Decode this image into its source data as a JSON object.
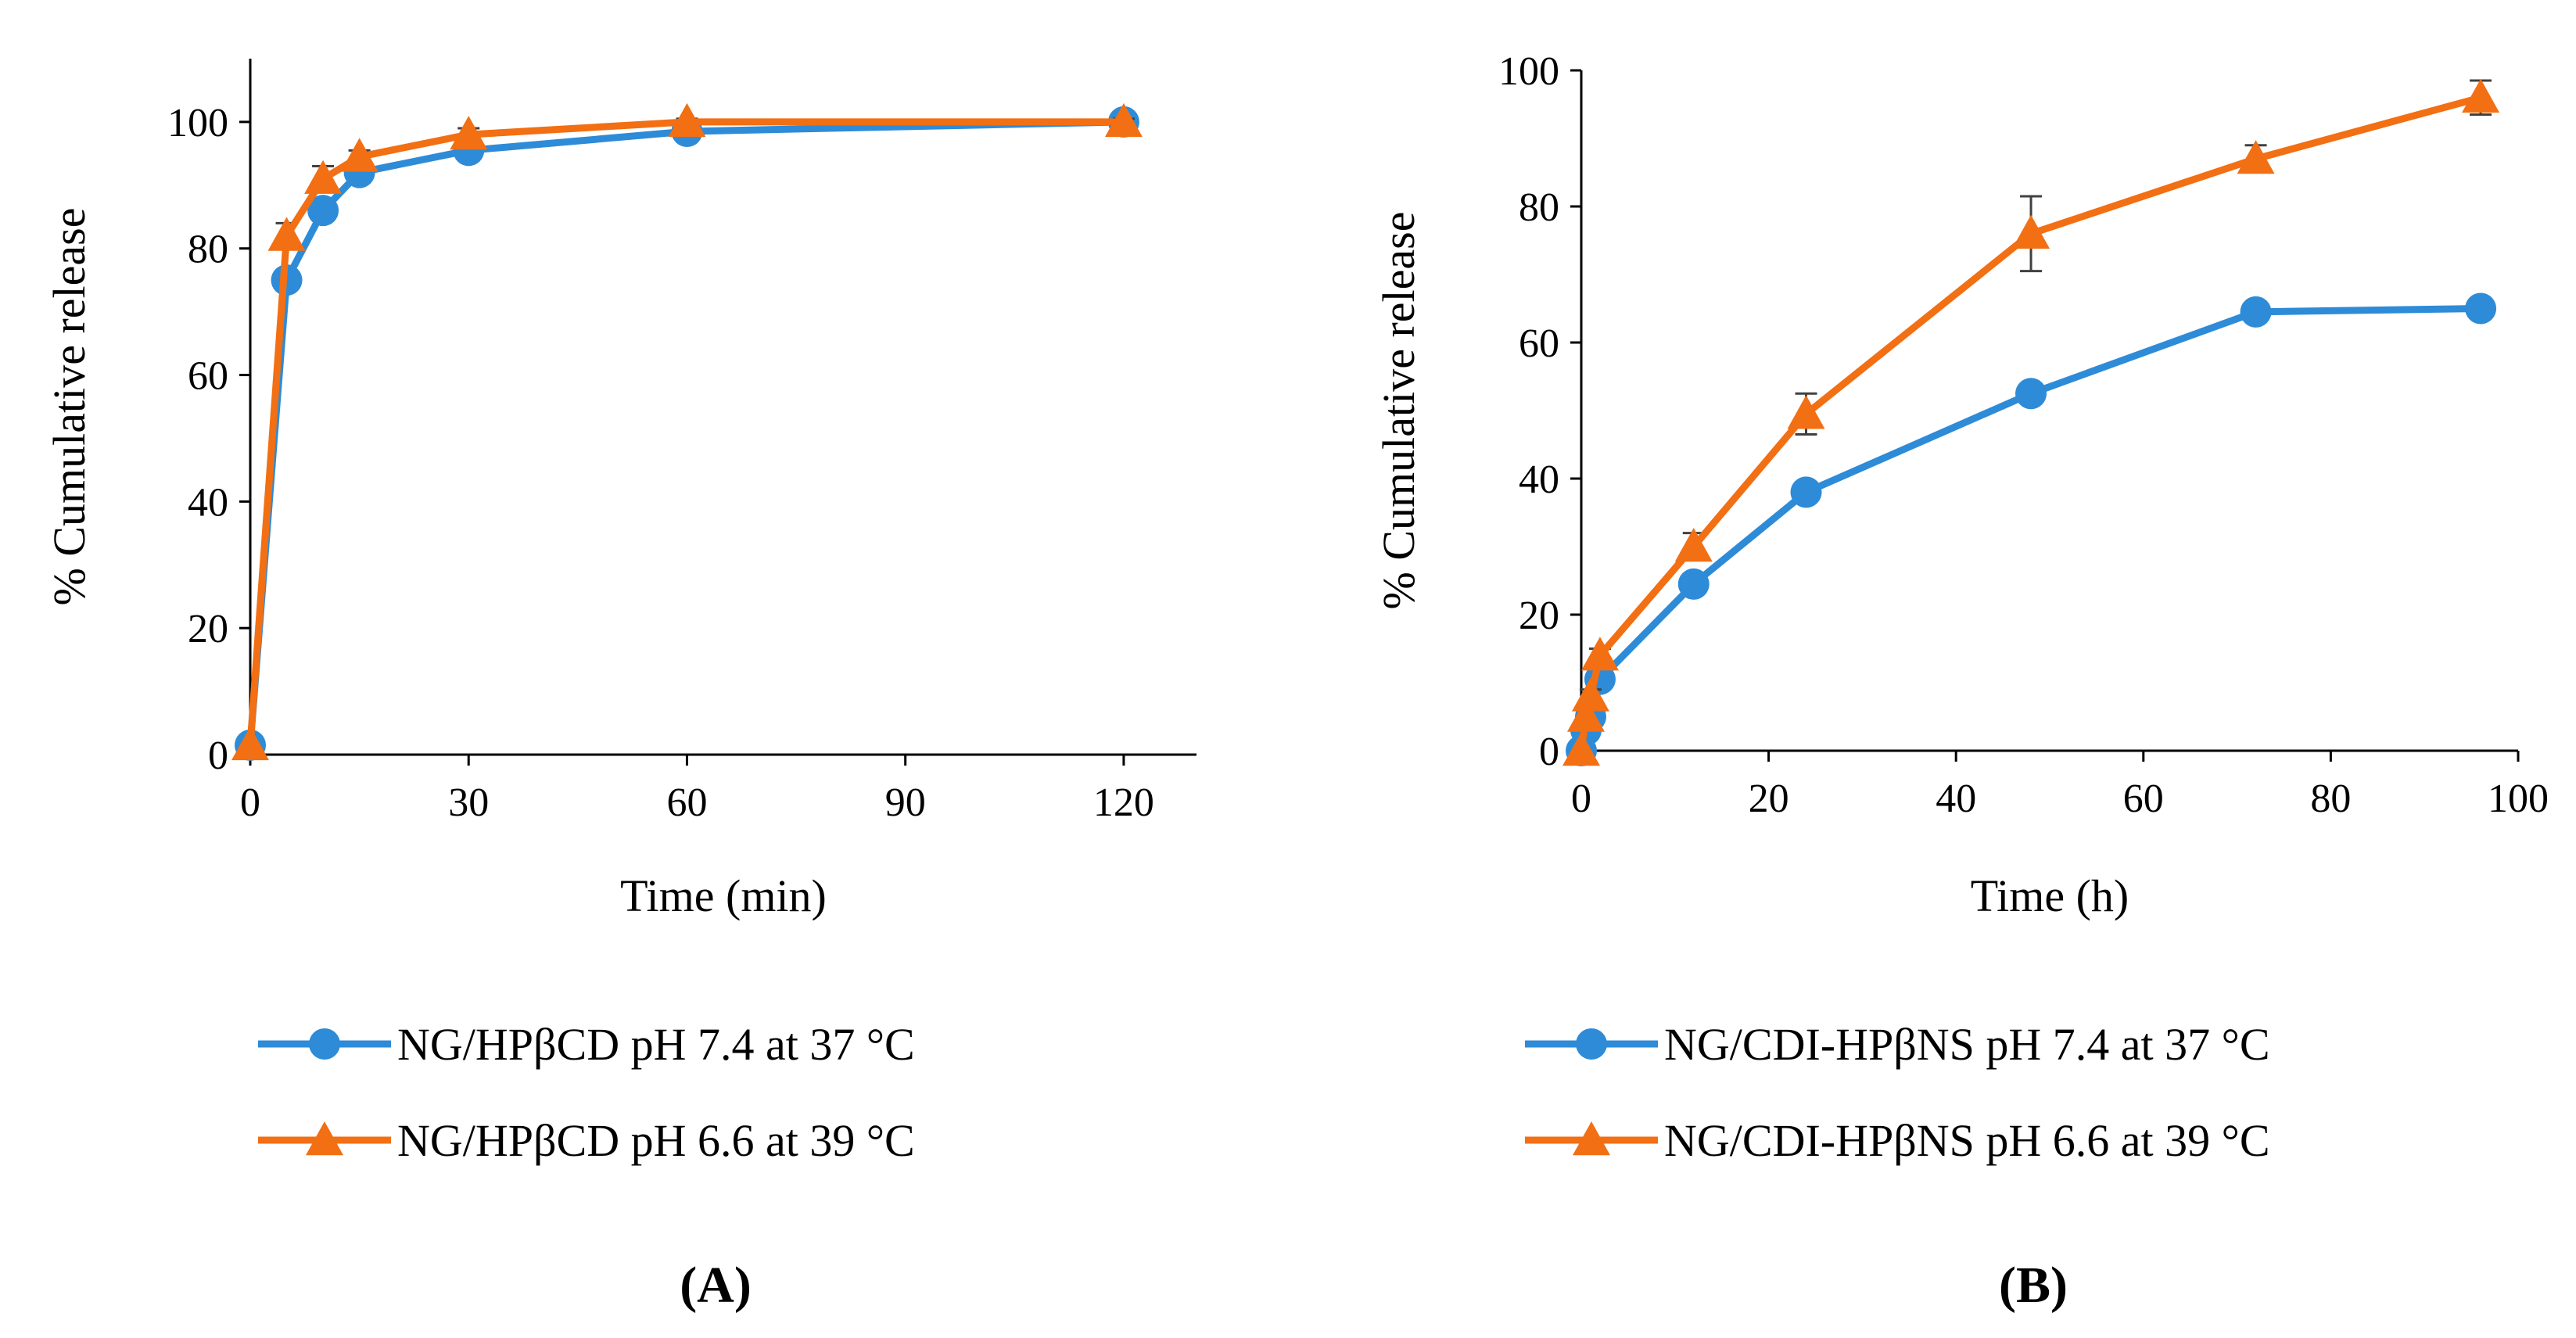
{
  "colors": {
    "blue": "#2e8bd7",
    "orange": "#f26f13"
  },
  "chart_data": [
    {
      "type": "line",
      "panel_label": "(A)",
      "xlabel": "Time (min)",
      "ylabel": "% Cumulative release",
      "xlim": [
        0,
        130
      ],
      "ylim": [
        0,
        110
      ],
      "xticks": [
        0,
        30,
        60,
        90,
        120
      ],
      "yticks": [
        0,
        20,
        40,
        60,
        80,
        100
      ],
      "grid": false,
      "legend_position": "bottom",
      "series": [
        {
          "name": "NG/HPβCD pH 7.4 at 37 °C",
          "color": "#2e8bd7",
          "marker": "circle",
          "x": [
            0,
            5,
            10,
            15,
            30,
            60,
            120
          ],
          "y": [
            1.5,
            75,
            86,
            92,
            95.5,
            98.5,
            100
          ],
          "err": [
            0,
            1.5,
            1.5,
            1,
            1,
            0.8,
            0.5
          ]
        },
        {
          "name": "NG/HPβCD pH 6.6 at 39 °C",
          "color": "#f26f13",
          "marker": "triangle",
          "x": [
            0,
            5,
            10,
            15,
            30,
            60,
            120
          ],
          "y": [
            1.5,
            82,
            91,
            94.5,
            98,
            100,
            100
          ],
          "err": [
            0,
            2,
            2,
            1,
            1,
            0.5,
            0.5
          ]
        }
      ]
    },
    {
      "type": "line",
      "panel_label": "(B)",
      "xlabel": "Time (h)",
      "ylabel": "% Cumulative release",
      "xlim": [
        0,
        100
      ],
      "ylim": [
        0,
        100
      ],
      "xticks": [
        0,
        20,
        40,
        60,
        80,
        100
      ],
      "yticks": [
        0,
        20,
        40,
        60,
        80,
        100
      ],
      "grid": false,
      "legend_position": "bottom",
      "series": [
        {
          "name": "NG/CDI-HPβNS pH 7.4 at 37 °C",
          "color": "#2e8bd7",
          "marker": "circle",
          "x": [
            0,
            0.5,
            1,
            2,
            12,
            24,
            48,
            72,
            96
          ],
          "y": [
            0,
            3,
            5,
            10.5,
            24.5,
            38,
            52.5,
            64.5,
            65
          ],
          "err": [
            0,
            0.5,
            0.5,
            1,
            1,
            1,
            1,
            1,
            1
          ]
        },
        {
          "name": "NG/CDI-HPβNS pH 6.6 at 39 °C",
          "color": "#f26f13",
          "marker": "triangle",
          "x": [
            0,
            0.5,
            1,
            2,
            12,
            24,
            48,
            72,
            96
          ],
          "y": [
            0,
            5,
            8,
            14,
            30,
            49.5,
            76,
            87,
            96
          ],
          "err": [
            0,
            1,
            1,
            1,
            2,
            3,
            5.5,
            2,
            2.5
          ]
        }
      ]
    }
  ]
}
